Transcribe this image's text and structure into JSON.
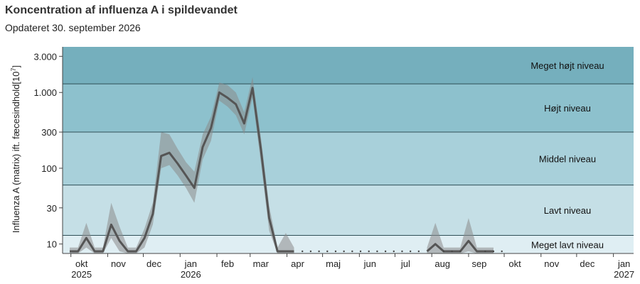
{
  "title": "Koncentration af influenza A i spildevandet",
  "subtitle": "Opdateret 30. september 2026",
  "chart_data": {
    "type": "line",
    "scale": "log",
    "ylabel": "Influenza A (matrix) ift. fæcesindhold[10",
    "ylabel_sup": "7",
    "ylabel_close": "]",
    "xlim": [
      "2025-09-24",
      "2027-01-18"
    ],
    "ylim": [
      7.5,
      4000
    ],
    "yticks": [
      {
        "value": 10,
        "label": "10"
      },
      {
        "value": 30,
        "label": "30"
      },
      {
        "value": 100,
        "label": "100"
      },
      {
        "value": 300,
        "label": "300"
      },
      {
        "value": 1000,
        "label": "1.000"
      },
      {
        "value": 3000,
        "label": "3.000"
      }
    ],
    "xticks": [
      {
        "date": "2025-10-01",
        "label": "okt",
        "year": "2025"
      },
      {
        "date": "2025-11-01",
        "label": "nov"
      },
      {
        "date": "2025-12-01",
        "label": "dec"
      },
      {
        "date": "2026-01-01",
        "label": "jan",
        "year": "2026"
      },
      {
        "date": "2026-02-01",
        "label": "feb"
      },
      {
        "date": "2026-03-01",
        "label": "mar"
      },
      {
        "date": "2026-04-01",
        "label": "apr"
      },
      {
        "date": "2026-05-01",
        "label": "maj"
      },
      {
        "date": "2026-06-01",
        "label": "jun"
      },
      {
        "date": "2026-07-01",
        "label": "jul"
      },
      {
        "date": "2026-08-01",
        "label": "aug"
      },
      {
        "date": "2026-09-01",
        "label": "sep"
      },
      {
        "date": "2026-10-01",
        "label": "okt"
      },
      {
        "date": "2026-11-01",
        "label": "nov"
      },
      {
        "date": "2026-12-01",
        "label": "dec"
      },
      {
        "date": "2027-01-01",
        "label": "jan",
        "year": "2027"
      }
    ],
    "levels": [
      {
        "name": "Meget lavt niveau",
        "from": 7.5,
        "to": 13,
        "color": "#dfeef3"
      },
      {
        "name": "Lavt niveau",
        "from": 13,
        "to": 60,
        "color": "#c5dfe6"
      },
      {
        "name": "Middel niveau",
        "from": 60,
        "to": 300,
        "color": "#a8d0da"
      },
      {
        "name": "Højt niveau",
        "from": 300,
        "to": 1300,
        "color": "#8dc1cd"
      },
      {
        "name": "Meget højt niveau",
        "from": 1300,
        "to": 4000,
        "color": "#75afbd"
      }
    ],
    "series": [
      {
        "x": [
          "2025-09-30",
          "2025-10-07",
          "2025-10-14",
          "2025-10-21",
          "2025-10-28",
          "2025-11-04",
          "2025-11-11",
          "2025-11-18",
          "2025-11-25",
          "2025-12-02",
          "2025-12-09",
          "2025-12-16",
          "2025-12-23",
          "2025-12-30",
          "2026-01-06",
          "2026-01-13",
          "2026-01-20",
          "2026-01-27",
          "2026-02-03",
          "2026-02-10",
          "2026-02-17",
          "2026-02-24",
          "2026-03-03",
          "2026-03-10",
          "2026-03-17",
          "2026-03-24",
          "2026-03-31",
          "2026-04-07"
        ],
        "y": [
          8,
          8,
          12,
          8,
          8,
          18,
          11,
          8,
          8,
          12,
          25,
          145,
          160,
          115,
          80,
          55,
          190,
          340,
          1000,
          850,
          700,
          390,
          1150,
          180,
          22,
          8,
          8,
          8
        ],
        "y_low": [
          7.5,
          7.5,
          9,
          7.5,
          7.5,
          12,
          8,
          7.5,
          7.5,
          9,
          18,
          100,
          110,
          80,
          55,
          35,
          130,
          230,
          780,
          650,
          500,
          280,
          850,
          120,
          15,
          7.5,
          7.5,
          7.5
        ],
        "y_high": [
          9,
          9,
          19,
          9,
          9,
          35,
          17,
          9,
          9,
          16,
          35,
          300,
          280,
          180,
          120,
          90,
          280,
          480,
          1350,
          1250,
          1000,
          550,
          1600,
          260,
          32,
          9,
          14,
          9
        ],
        "color": "#555555"
      },
      {
        "x": [
          "2026-07-28",
          "2026-08-04",
          "2026-08-11",
          "2026-08-18",
          "2026-08-25",
          "2026-09-01",
          "2026-09-08",
          "2026-09-15",
          "2026-09-22"
        ],
        "y": [
          8,
          10,
          8,
          8,
          8,
          11,
          8,
          8,
          8
        ],
        "y_low": [
          7.5,
          7.5,
          7.5,
          7.5,
          7.5,
          8,
          7.5,
          7.5,
          7.5
        ],
        "y_high": [
          9,
          19,
          9,
          9,
          9,
          22,
          9,
          9,
          9
        ],
        "color": "#555555"
      }
    ],
    "markers": {
      "x": [
        "2026-04-14",
        "2026-04-21",
        "2026-04-28",
        "2026-05-05",
        "2026-05-12",
        "2026-05-19",
        "2026-05-26",
        "2026-06-02",
        "2026-06-09",
        "2026-06-16",
        "2026-06-23",
        "2026-06-30",
        "2026-07-07",
        "2026-07-14",
        "2026-07-21",
        "2026-08-11",
        "2026-08-18",
        "2026-08-25",
        "2026-09-15",
        "2026-09-22",
        "2026-09-29"
      ],
      "y": 8
    }
  }
}
